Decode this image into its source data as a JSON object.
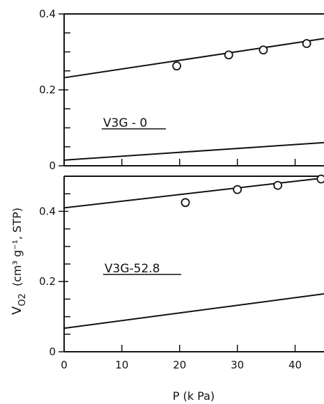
{
  "chart_data": [
    {
      "type": "scatter",
      "panel": "top",
      "annotation": "V3G - 0",
      "xlim": [
        0,
        45
      ],
      "ylim": [
        0,
        0.4
      ],
      "y_ticks": [
        0,
        0.2,
        0.4
      ],
      "y_tick_labels": [
        "0",
        "0.2",
        "0.4"
      ],
      "x_ticks": [
        0,
        10,
        20,
        30,
        40
      ],
      "points": [
        {
          "x": 19.5,
          "y": 0.263
        },
        {
          "x": 28.5,
          "y": 0.292
        },
        {
          "x": 34.5,
          "y": 0.305
        },
        {
          "x": 42.0,
          "y": 0.322
        }
      ],
      "lines": [
        {
          "x": [
            0,
            45
          ],
          "y": [
            0.232,
            0.335
          ]
        },
        {
          "x": [
            0,
            45
          ],
          "y": [
            0.015,
            0.061
          ]
        }
      ]
    },
    {
      "type": "scatter",
      "panel": "bottom",
      "annotation": "V3G-52.8",
      "xlim": [
        0,
        45
      ],
      "ylim": [
        0,
        0.5
      ],
      "y_ticks": [
        0,
        0.2,
        0.4
      ],
      "y_tick_labels": [
        "0",
        "0.2",
        "0.4"
      ],
      "x_ticks": [
        0,
        10,
        20,
        30,
        40
      ],
      "x_tick_labels": [
        "0",
        "10",
        "20",
        "30",
        "40"
      ],
      "points": [
        {
          "x": 21.0,
          "y": 0.425
        },
        {
          "x": 30.0,
          "y": 0.462
        },
        {
          "x": 37.0,
          "y": 0.474
        },
        {
          "x": 44.5,
          "y": 0.492
        }
      ],
      "lines": [
        {
          "x": [
            0,
            45
          ],
          "y": [
            0.41,
            0.495
          ]
        },
        {
          "x": [
            0,
            45
          ],
          "y": [
            0.067,
            0.165
          ]
        }
      ]
    }
  ],
  "ylabel": "V",
  "ylabel_sub": "O2",
  "ylabel_units": "(cm³ g⁻¹, STP)",
  "xlabel": "P (k Pa)"
}
